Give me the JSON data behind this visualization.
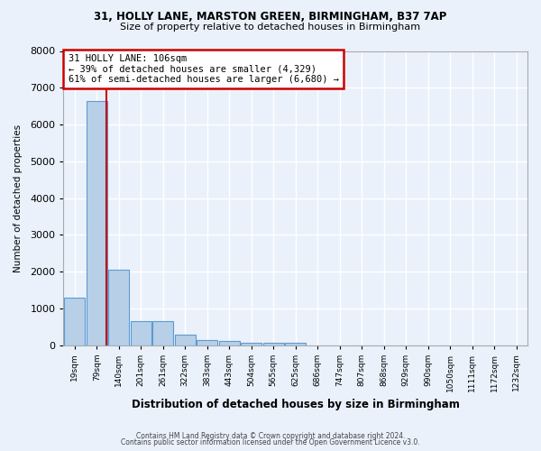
{
  "title1": "31, HOLLY LANE, MARSTON GREEN, BIRMINGHAM, B37 7AP",
  "title2": "Size of property relative to detached houses in Birmingham",
  "xlabel": "Distribution of detached houses by size in Birmingham",
  "ylabel": "Number of detached properties",
  "footnote1": "Contains HM Land Registry data © Crown copyright and database right 2024.",
  "footnote2": "Contains public sector information licensed under the Open Government Licence v3.0.",
  "bin_labels": [
    "19sqm",
    "79sqm",
    "140sqm",
    "201sqm",
    "261sqm",
    "322sqm",
    "383sqm",
    "443sqm",
    "504sqm",
    "565sqm",
    "625sqm",
    "686sqm",
    "747sqm",
    "807sqm",
    "868sqm",
    "929sqm",
    "990sqm",
    "1050sqm",
    "1111sqm",
    "1172sqm",
    "1232sqm"
  ],
  "bar_values": [
    1300,
    6650,
    2050,
    650,
    650,
    280,
    130,
    100,
    60,
    50,
    60,
    0,
    0,
    0,
    0,
    0,
    0,
    0,
    0,
    0,
    0
  ],
  "bar_color": "#b8cfe8",
  "bar_edge_color": "#5b9bd5",
  "background_color": "#eaf1fb",
  "grid_color": "#ffffff",
  "annotation_line1": "31 HOLLY LANE: 106sqm",
  "annotation_line2": "← 39% of detached houses are smaller (4,329)",
  "annotation_line3": "61% of semi-detached houses are larger (6,680) →",
  "annotation_box_color": "#ffffff",
  "annotation_border_color": "#cc0000",
  "red_line_x": 1.45,
  "ylim": [
    0,
    8000
  ],
  "yticks": [
    0,
    1000,
    2000,
    3000,
    4000,
    5000,
    6000,
    7000,
    8000
  ]
}
